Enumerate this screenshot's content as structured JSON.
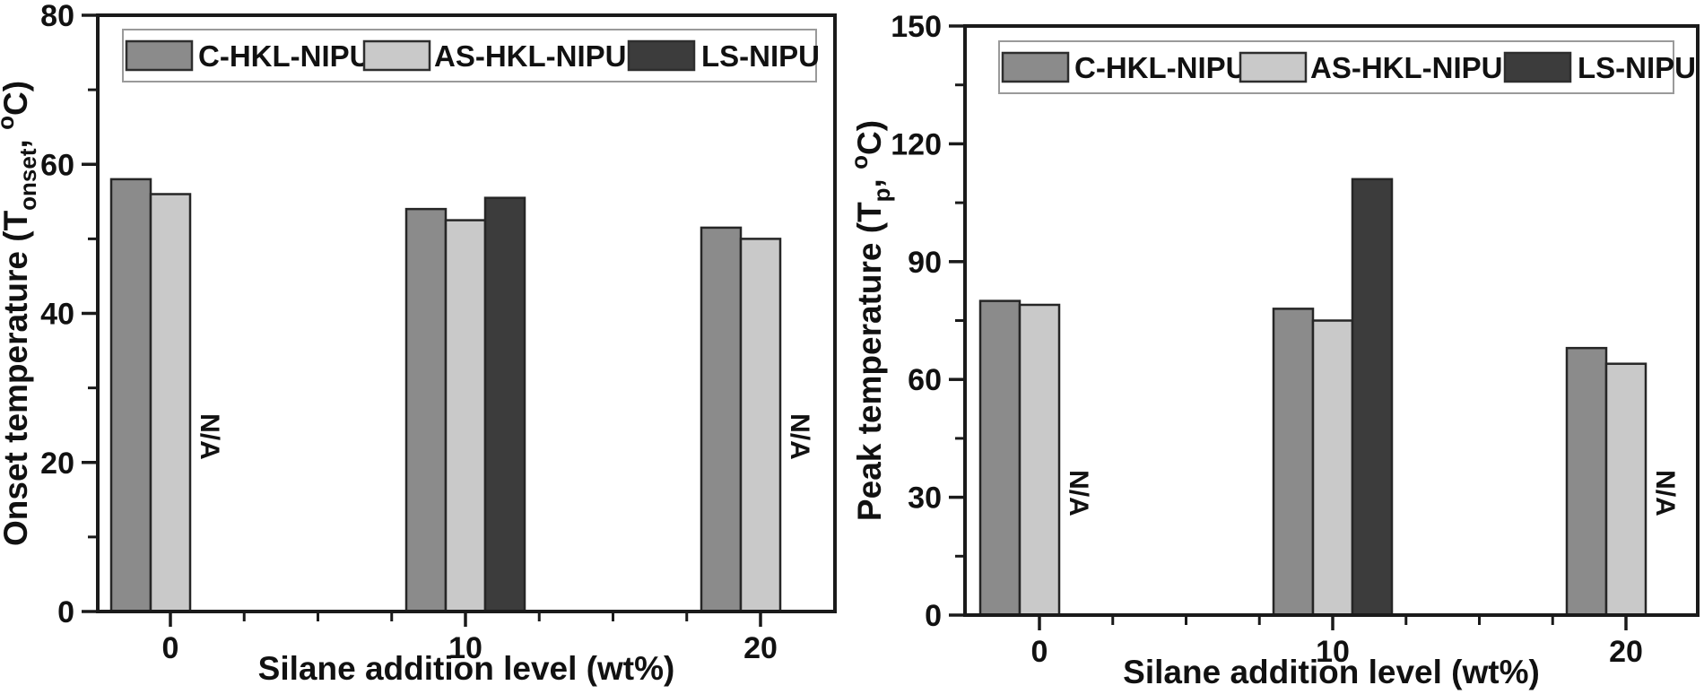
{
  "figure": {
    "background": "#ffffff",
    "na_label": "N/A"
  },
  "colors": {
    "axis": "#1a1a1a",
    "text": "#111111",
    "bar_border": "#262626",
    "legend_border": "#9a9a9a",
    "legend_fill": "#ffffff"
  },
  "chart_data": [
    {
      "type": "bar",
      "panel": "left",
      "xlabel": "Silane addition level (wt%)",
      "ylabel": "Onset temperature (Tonset, °C)",
      "ylabel_parts": [
        {
          "text": "Onset temperature (T",
          "style": "normal"
        },
        {
          "text": "onset",
          "style": "sub"
        },
        {
          "text": ", ",
          "style": "normal"
        },
        {
          "text": "o",
          "style": "sup"
        },
        {
          "text": "C)",
          "style": "normal"
        }
      ],
      "categories": [
        "0",
        "10",
        "20"
      ],
      "series": [
        {
          "name": "C-HKL-NIPU",
          "color": "#8b8b8b",
          "values": [
            58,
            54,
            51.5
          ]
        },
        {
          "name": "AS-HKL-NIPU",
          "color": "#c9c9c9",
          "values": [
            56,
            52.5,
            50
          ]
        },
        {
          "name": "LS-NIPU",
          "color": "#3c3c3c",
          "values": [
            null,
            55.5,
            null
          ]
        }
      ],
      "ylim": [
        0,
        80
      ],
      "y_major_ticks": [
        0,
        20,
        40,
        60,
        80
      ],
      "y_minor_ticks": [
        10,
        30,
        50,
        70
      ],
      "x_minor_per_interval": 3,
      "grid": false,
      "legend_position": "top",
      "na_annotations": [
        {
          "category_index": 0,
          "series_index": 2,
          "label": "N/A"
        },
        {
          "category_index": 2,
          "series_index": 2,
          "label": "N/A"
        }
      ]
    },
    {
      "type": "bar",
      "panel": "right",
      "xlabel": "Silane addition level (wt%)",
      "ylabel": "Peak temperature (Tp, °C)",
      "ylabel_parts": [
        {
          "text": "Peak temperature (T",
          "style": "normal"
        },
        {
          "text": "p",
          "style": "sub"
        },
        {
          "text": ", ",
          "style": "normal"
        },
        {
          "text": "o",
          "style": "sup"
        },
        {
          "text": "C)",
          "style": "normal"
        }
      ],
      "categories": [
        "0",
        "10",
        "20"
      ],
      "series": [
        {
          "name": "C-HKL-NIPU",
          "color": "#8b8b8b",
          "values": [
            80,
            78,
            68
          ]
        },
        {
          "name": "AS-HKL-NIPU",
          "color": "#c9c9c9",
          "values": [
            79,
            75,
            64
          ]
        },
        {
          "name": "LS-NIPU",
          "color": "#3c3c3c",
          "values": [
            null,
            111,
            null
          ]
        }
      ],
      "ylim": [
        0,
        150
      ],
      "y_major_ticks": [
        0,
        30,
        60,
        90,
        120,
        150
      ],
      "y_minor_ticks": [
        15,
        45,
        75,
        105,
        135
      ],
      "x_minor_per_interval": 3,
      "grid": false,
      "legend_position": "top",
      "na_annotations": [
        {
          "category_index": 0,
          "series_index": 2,
          "label": "N/A"
        },
        {
          "category_index": 2,
          "series_index": 2,
          "label": "N/A"
        }
      ]
    }
  ]
}
